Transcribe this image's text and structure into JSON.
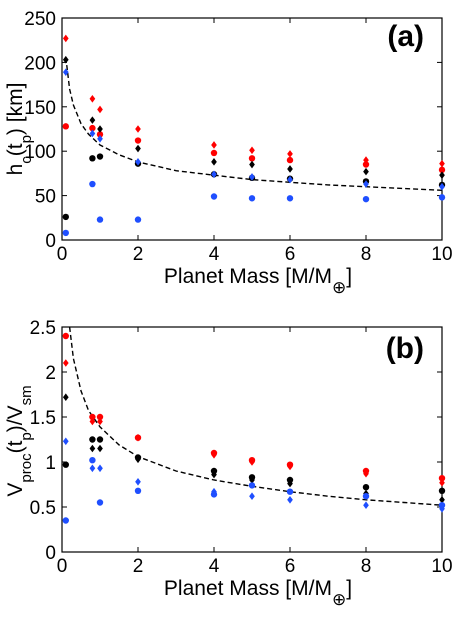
{
  "chart_data": [
    {
      "type": "scatter",
      "panel_label": "(a)",
      "xlabel": "Planet Mass [M/M⊕]",
      "ylabel": "h_c(t_p) [km]",
      "xlim": [
        0,
        10
      ],
      "ylim": [
        0,
        250
      ],
      "xticks": [
        "0",
        "2",
        "4",
        "6",
        "8",
        "10"
      ],
      "yticks": [
        "0",
        "50",
        "100",
        "150",
        "200",
        "250"
      ],
      "grid": false,
      "colors": {
        "red": "#ff0000",
        "black": "#000000",
        "blue": "#1f4fff"
      },
      "series": [
        {
          "color": "red",
          "marker": "diamond",
          "points": [
            [
              0.1,
              227
            ],
            [
              0.8,
              159
            ],
            [
              1.0,
              147
            ],
            [
              2.0,
              125
            ],
            [
              4.0,
              107
            ],
            [
              5.0,
              101
            ],
            [
              6.0,
              97
            ],
            [
              8.0,
              90
            ],
            [
              10.0,
              86
            ]
          ]
        },
        {
          "color": "red",
          "marker": "circle",
          "points": [
            [
              0.1,
              128
            ],
            [
              0.8,
              126
            ],
            [
              1.0,
              119
            ],
            [
              2.0,
              112
            ],
            [
              4.0,
              98
            ],
            [
              5.0,
              92
            ],
            [
              6.0,
              90
            ],
            [
              8.0,
              85
            ],
            [
              10.0,
              79
            ]
          ]
        },
        {
          "color": "black",
          "marker": "diamond",
          "points": [
            [
              0.1,
              203
            ],
            [
              0.8,
              135
            ],
            [
              1.0,
              125
            ],
            [
              2.0,
              103
            ],
            [
              4.0,
              88
            ],
            [
              5.0,
              85
            ],
            [
              6.0,
              80
            ],
            [
              8.0,
              77
            ],
            [
              10.0,
              73
            ]
          ]
        },
        {
          "color": "black",
          "marker": "circle",
          "points": [
            [
              0.1,
              26
            ],
            [
              0.8,
              92
            ],
            [
              1.0,
              94
            ],
            [
              2.0,
              86
            ],
            [
              4.0,
              74
            ],
            [
              5.0,
              70
            ],
            [
              6.0,
              69
            ],
            [
              8.0,
              66
            ],
            [
              10.0,
              62
            ]
          ]
        },
        {
          "color": "blue",
          "marker": "diamond",
          "points": [
            [
              0.1,
              189
            ],
            [
              0.8,
              120
            ],
            [
              1.0,
              114
            ],
            [
              2.0,
              88
            ],
            [
              4.0,
              74
            ],
            [
              5.0,
              71
            ],
            [
              6.0,
              68
            ],
            [
              8.0,
              63
            ],
            [
              10.0,
              60
            ]
          ]
        },
        {
          "color": "blue",
          "marker": "circle",
          "points": [
            [
              0.1,
              8
            ],
            [
              0.8,
              63
            ],
            [
              1.0,
              23
            ],
            [
              2.0,
              23
            ],
            [
              4.0,
              49
            ],
            [
              5.0,
              47
            ],
            [
              6.0,
              47
            ],
            [
              8.0,
              46
            ],
            [
              10.0,
              48
            ]
          ]
        }
      ],
      "fit_curve": {
        "style": "dashed",
        "color": "black",
        "points": [
          [
            0.1,
            206
          ],
          [
            0.2,
            170
          ],
          [
            0.3,
            152
          ],
          [
            0.5,
            131
          ],
          [
            0.7,
            119
          ],
          [
            1,
            107
          ],
          [
            1.5,
            96
          ],
          [
            2,
            88
          ],
          [
            3,
            78
          ],
          [
            4,
            73
          ],
          [
            5,
            68
          ],
          [
            6,
            65
          ],
          [
            7,
            62
          ],
          [
            8,
            60
          ],
          [
            9,
            58
          ],
          [
            10,
            56
          ]
        ]
      }
    },
    {
      "type": "scatter",
      "panel_label": "(b)",
      "xlabel": "Planet Mass [M/M⊕]",
      "ylabel": "V_proc(t_p)/V_sm",
      "xlim": [
        0,
        10
      ],
      "ylim": [
        0,
        2.5
      ],
      "xticks": [
        "0",
        "2",
        "4",
        "6",
        "8",
        "10"
      ],
      "yticks": [
        "0",
        "0.5",
        "1",
        "1.5",
        "2",
        "2.5"
      ],
      "grid": false,
      "colors": {
        "red": "#ff0000",
        "black": "#000000",
        "blue": "#1f4fff"
      },
      "series": [
        {
          "color": "red",
          "marker": "circle",
          "points": [
            [
              0.1,
              2.4
            ],
            [
              0.8,
              1.5
            ],
            [
              1.0,
              1.5
            ],
            [
              2.0,
              1.27
            ],
            [
              4.0,
              1.1
            ],
            [
              5.0,
              1.02
            ],
            [
              6.0,
              0.97
            ],
            [
              8.0,
              0.9
            ],
            [
              10.0,
              0.82
            ]
          ]
        },
        {
          "color": "red",
          "marker": "diamond",
          "points": [
            [
              0.1,
              2.1
            ],
            [
              0.8,
              1.45
            ],
            [
              1.0,
              1.45
            ],
            [
              2.0,
              1.27
            ],
            [
              4.0,
              1.08
            ],
            [
              5.0,
              1.0
            ],
            [
              6.0,
              0.95
            ],
            [
              8.0,
              0.87
            ],
            [
              10.0,
              0.77
            ]
          ]
        },
        {
          "color": "black",
          "marker": "diamond",
          "points": [
            [
              0.1,
              1.72
            ],
            [
              0.8,
              1.15
            ],
            [
              1.0,
              1.15
            ],
            [
              2.0,
              1.03
            ],
            [
              4.0,
              0.86
            ],
            [
              5.0,
              0.8
            ],
            [
              6.0,
              0.76
            ],
            [
              8.0,
              0.65
            ],
            [
              10.0,
              0.58
            ]
          ]
        },
        {
          "color": "black",
          "marker": "circle",
          "points": [
            [
              0.1,
              0.97
            ],
            [
              0.8,
              1.25
            ],
            [
              1.0,
              1.25
            ],
            [
              2.0,
              1.05
            ],
            [
              4.0,
              0.9
            ],
            [
              5.0,
              0.83
            ],
            [
              6.0,
              0.8
            ],
            [
              8.0,
              0.72
            ],
            [
              10.0,
              0.68
            ]
          ]
        },
        {
          "color": "blue",
          "marker": "diamond",
          "points": [
            [
              0.1,
              1.23
            ],
            [
              0.8,
              0.93
            ],
            [
              1.0,
              0.93
            ],
            [
              2.0,
              0.78
            ],
            [
              4.0,
              0.67
            ],
            [
              5.0,
              0.62
            ],
            [
              6.0,
              0.58
            ],
            [
              8.0,
              0.52
            ],
            [
              10.0,
              0.48
            ]
          ]
        },
        {
          "color": "blue",
          "marker": "circle",
          "points": [
            [
              0.1,
              0.35
            ],
            [
              0.8,
              1.02
            ],
            [
              1.0,
              0.55
            ],
            [
              2.0,
              0.68
            ],
            [
              4.0,
              0.64
            ],
            [
              5.0,
              0.74
            ],
            [
              6.0,
              0.67
            ],
            [
              8.0,
              0.62
            ],
            [
              10.0,
              0.52
            ]
          ]
        }
      ],
      "fit_curve": {
        "style": "dashed",
        "color": "black",
        "points": [
          [
            0.2,
            2.5
          ],
          [
            0.3,
            2.15
          ],
          [
            0.5,
            1.79
          ],
          [
            0.7,
            1.57
          ],
          [
            1,
            1.39
          ],
          [
            1.5,
            1.19
          ],
          [
            2,
            1.06
          ],
          [
            3,
            0.9
          ],
          [
            4,
            0.8
          ],
          [
            5,
            0.73
          ],
          [
            6,
            0.67
          ],
          [
            7,
            0.62
          ],
          [
            8,
            0.58
          ],
          [
            9,
            0.55
          ],
          [
            10,
            0.52
          ]
        ]
      }
    }
  ]
}
